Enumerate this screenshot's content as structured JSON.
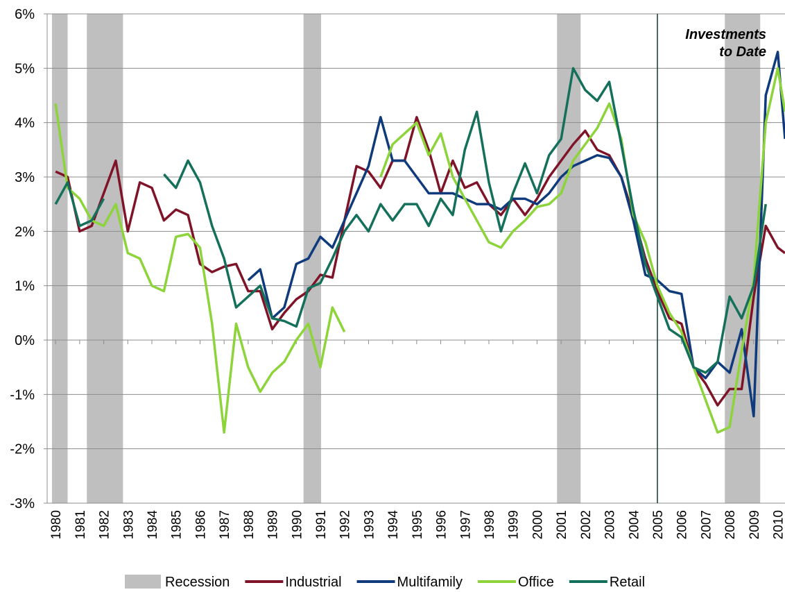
{
  "chart_data": {
    "type": "line",
    "x": [
      1980,
      1980.5,
      1981,
      1981.5,
      1982,
      1982.5,
      1983,
      1983.5,
      1984,
      1984.5,
      1985,
      1985.5,
      1986,
      1986.5,
      1987,
      1987.5,
      1988,
      1988.5,
      1989,
      1989.5,
      1990,
      1990.5,
      1991,
      1991.5,
      1992,
      1992.5,
      1993,
      1993.5,
      1994,
      1994.5,
      1995,
      1995.5,
      1996,
      1996.5,
      1997,
      1997.5,
      1998,
      1998.5,
      1999,
      1999.5,
      2000,
      2000.5,
      2001,
      2001.5,
      2002,
      2002.5,
      2003,
      2003.5,
      2004,
      2004.5,
      2005,
      2005.5,
      2006,
      2006.5,
      2007,
      2007.5,
      2008,
      2008.5,
      2009,
      2009.5,
      2010,
      2010.3
    ],
    "series": [
      {
        "name": "Industrial",
        "color": "#7f1428",
        "values": [
          3.1,
          3.0,
          2.0,
          2.1,
          2.7,
          3.3,
          2.0,
          2.9,
          2.8,
          2.2,
          2.4,
          2.3,
          1.4,
          1.25,
          1.35,
          1.4,
          0.9,
          0.9,
          0.2,
          0.5,
          0.75,
          0.9,
          1.2,
          1.15,
          2.2,
          3.2,
          3.1,
          2.8,
          3.3,
          3.3,
          4.1,
          3.5,
          2.7,
          3.3,
          2.8,
          2.9,
          2.5,
          2.3,
          2.6,
          2.3,
          2.6,
          3.0,
          3.3,
          3.6,
          3.85,
          3.5,
          3.4,
          3.0,
          2.3,
          1.5,
          0.9,
          0.4,
          0.3,
          -0.5,
          -0.8,
          -1.2,
          -0.9,
          -0.9,
          0.8,
          2.1,
          1.7,
          1.6
        ]
      },
      {
        "name": "Multifamily",
        "color": "#0f3a7c",
        "values": [
          null,
          null,
          null,
          null,
          null,
          null,
          null,
          null,
          null,
          null,
          null,
          null,
          null,
          null,
          null,
          null,
          1.1,
          1.3,
          0.4,
          0.6,
          1.4,
          1.5,
          1.9,
          1.7,
          2.2,
          2.7,
          3.2,
          4.1,
          3.3,
          3.3,
          3.0,
          2.7,
          2.7,
          2.7,
          2.6,
          2.5,
          2.5,
          2.4,
          2.6,
          2.6,
          2.5,
          2.7,
          3.0,
          3.2,
          3.3,
          3.4,
          3.35,
          3.0,
          2.2,
          1.2,
          1.1,
          0.9,
          0.85,
          -0.5,
          -0.7,
          -0.4,
          -0.6,
          0.2,
          -1.4,
          4.5,
          5.3,
          3.7
        ]
      },
      {
        "name": "Office",
        "color": "#8dd43b",
        "values": [
          4.35,
          2.8,
          2.6,
          2.2,
          2.1,
          2.5,
          1.6,
          1.5,
          1.0,
          0.9,
          1.9,
          1.95,
          1.7,
          0.3,
          -1.7,
          0.3,
          -0.5,
          -0.95,
          -0.6,
          -0.4,
          0.0,
          0.3,
          -0.5,
          0.6,
          0.15,
          null,
          null,
          3.0,
          3.6,
          3.8,
          4.0,
          3.4,
          3.8,
          3.0,
          2.6,
          2.2,
          1.8,
          1.7,
          2.0,
          2.2,
          2.45,
          2.5,
          2.7,
          3.3,
          3.6,
          3.9,
          4.35,
          3.7,
          2.3,
          1.8,
          1.0,
          0.5,
          0.15,
          -0.5,
          -1.1,
          -1.7,
          -1.6,
          -0.2,
          1.1,
          4.0,
          5.0,
          4.2
        ]
      },
      {
        "name": "Retail",
        "color": "#14705a",
        "values": [
          2.5,
          2.9,
          2.1,
          2.2,
          2.6,
          null,
          null,
          null,
          null,
          3.05,
          2.8,
          3.3,
          2.9,
          2.1,
          1.5,
          0.6,
          0.8,
          1.0,
          0.4,
          0.35,
          0.25,
          0.95,
          1.05,
          1.5,
          2.0,
          2.3,
          2.0,
          2.5,
          2.2,
          2.5,
          2.5,
          2.1,
          2.6,
          2.3,
          3.5,
          4.2,
          2.9,
          2.0,
          2.7,
          3.25,
          2.7,
          3.4,
          3.7,
          5.0,
          4.6,
          4.4,
          4.75,
          3.6,
          2.4,
          1.4,
          0.8,
          0.2,
          0.05,
          -0.5,
          -0.6,
          -0.4,
          0.8,
          0.4,
          1.0,
          2.5,
          null,
          null
        ]
      }
    ],
    "recession": {
      "name": "Recession",
      "color": "#bfbfbf",
      "periods": [
        [
          1979.85,
          1980.5
        ],
        [
          1981.3,
          1982.8
        ],
        [
          1990.3,
          1991.03
        ],
        [
          2000.83,
          2001.81
        ],
        [
          2007.8,
          2009.27
        ]
      ]
    },
    "marker_line": 2005,
    "annotation": [
      "Investments",
      "to Date"
    ],
    "xlim": [
      1979.65,
      2010.3
    ],
    "xticks": [
      1980,
      1981,
      1982,
      1983,
      1984,
      1985,
      1986,
      1987,
      1988,
      1989,
      1990,
      1991,
      1992,
      1993,
      1994,
      1995,
      1996,
      1997,
      1998,
      1999,
      2000,
      2001,
      2002,
      2003,
      2004,
      2005,
      2006,
      2007,
      2008,
      2009,
      2010
    ],
    "ylim": [
      -3,
      6
    ],
    "yticks": [
      {
        "value": -3,
        "label": "-3%"
      },
      {
        "value": -2,
        "label": "-2%"
      },
      {
        "value": -1,
        "label": "-1%"
      },
      {
        "value": 0,
        "label": "0%"
      },
      {
        "value": 1,
        "label": "1%"
      },
      {
        "value": 2,
        "label": "2%"
      },
      {
        "value": 3,
        "label": "3%"
      },
      {
        "value": 4,
        "label": "4%"
      },
      {
        "value": 5,
        "label": "5%"
      },
      {
        "value": 6,
        "label": "6%"
      }
    ],
    "grid": true
  }
}
